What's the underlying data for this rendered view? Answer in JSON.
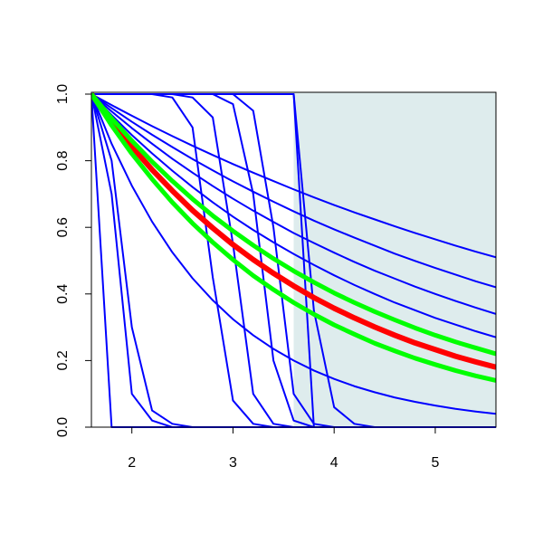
{
  "chart_data": {
    "type": "line",
    "x": [
      1.6,
      1.8,
      2.0,
      2.2,
      2.4,
      2.6,
      2.8,
      3.0,
      3.2,
      3.4,
      3.6,
      3.8,
      4.0,
      4.2,
      4.4,
      4.6,
      4.8,
      5.0,
      5.2,
      5.4,
      5.6
    ],
    "xlim": [
      1.6,
      5.6
    ],
    "ylim": [
      0,
      1
    ],
    "xticks": [
      2,
      3,
      4,
      5
    ],
    "yticks": [
      {
        "value": 0,
        "label": "0.0"
      },
      0.2,
      0.4,
      0.6,
      0.8,
      {
        "value": 1,
        "label": "1.0"
      }
    ],
    "shaded_region": {
      "x": [
        3.6,
        5.6
      ],
      "color": "#deeced"
    },
    "series": [
      {
        "color": "#0000ff",
        "width": 2,
        "values": [
          1,
          0.967,
          0.935,
          0.904,
          0.874,
          0.845,
          0.817,
          0.79,
          0.764,
          0.739,
          0.714,
          0.69,
          0.667,
          0.645,
          0.624,
          0.603,
          0.583,
          0.564,
          0.545,
          0.527,
          0.51
        ]
      },
      {
        "color": "#0000ff",
        "width": 2,
        "values": [
          1,
          0.958,
          0.917,
          0.878,
          0.841,
          0.805,
          0.771,
          0.738,
          0.707,
          0.677,
          0.648,
          0.62,
          0.594,
          0.569,
          0.545,
          0.521,
          0.499,
          0.478,
          0.458,
          0.438,
          0.42
        ]
      },
      {
        "color": "#0000ff",
        "width": 2,
        "values": [
          1,
          0.948,
          0.898,
          0.851,
          0.806,
          0.764,
          0.724,
          0.686,
          0.65,
          0.616,
          0.583,
          0.553,
          0.524,
          0.496,
          0.47,
          0.446,
          0.422,
          0.4,
          0.379,
          0.359,
          0.34
        ]
      },
      {
        "color": "#0000ff",
        "width": 2,
        "values": [
          1,
          0.937,
          0.877,
          0.822,
          0.77,
          0.721,
          0.675,
          0.632,
          0.592,
          0.555,
          0.52,
          0.487,
          0.456,
          0.427,
          0.4,
          0.374,
          0.351,
          0.328,
          0.308,
          0.288,
          0.27
        ]
      },
      {
        "color": "#0000ff",
        "width": 2,
        "values": [
          1,
          0.851,
          0.725,
          0.617,
          0.525,
          0.447,
          0.381,
          0.324,
          0.276,
          0.235,
          0.2,
          0.17,
          0.145,
          0.123,
          0.105,
          0.089,
          0.076,
          0.065,
          0.055,
          0.047,
          0.04
        ]
      },
      {
        "color": "#0000ff",
        "width": 2,
        "values": [
          1,
          0,
          0,
          0,
          0,
          0,
          0,
          0,
          0,
          0,
          0,
          0,
          0,
          0,
          0,
          0,
          0,
          0,
          0,
          0,
          0
        ]
      },
      {
        "color": "#0000ff",
        "width": 2,
        "values": [
          1,
          0.7,
          0.1,
          0.02,
          0,
          0,
          0,
          0,
          0,
          0,
          0,
          0,
          0,
          0,
          0,
          0,
          0,
          0,
          0,
          0,
          0
        ]
      },
      {
        "color": "#0000ff",
        "width": 2,
        "values": [
          1,
          0.8,
          0.3,
          0.05,
          0.01,
          0,
          0,
          0,
          0,
          0,
          0,
          0,
          0,
          0,
          0,
          0,
          0,
          0,
          0,
          0,
          0
        ]
      },
      {
        "color": "#0000ff",
        "width": 2,
        "values": [
          1,
          1,
          1,
          1,
          0.99,
          0.9,
          0.45,
          0.08,
          0.01,
          0,
          0,
          0,
          0,
          0,
          0,
          0,
          0,
          0,
          0,
          0,
          0
        ]
      },
      {
        "color": "#0000ff",
        "width": 2,
        "values": [
          1,
          1,
          1,
          1,
          1,
          0.99,
          0.93,
          0.55,
          0.1,
          0.01,
          0,
          0,
          0,
          0,
          0,
          0,
          0,
          0,
          0,
          0,
          0
        ]
      },
      {
        "color": "#0000ff",
        "width": 2,
        "values": [
          1,
          1,
          1,
          1,
          1,
          1,
          1,
          0.97,
          0.7,
          0.2,
          0.02,
          0,
          0,
          0,
          0,
          0,
          0,
          0,
          0,
          0,
          0
        ]
      },
      {
        "color": "#0000ff",
        "width": 2,
        "values": [
          1,
          1,
          1,
          1,
          1,
          1,
          1,
          1,
          0.95,
          0.6,
          0.1,
          0.01,
          0,
          0,
          0,
          0,
          0,
          0,
          0,
          0,
          0
        ]
      },
      {
        "color": "#0000ff",
        "width": 2,
        "values": [
          1,
          1,
          1,
          1,
          1,
          1,
          1,
          1,
          1,
          1,
          1,
          0,
          0,
          0,
          0,
          0,
          0,
          0,
          0,
          0,
          0
        ]
      },
      {
        "color": "#0000ff",
        "width": 2,
        "values": [
          1,
          1,
          1,
          1,
          1,
          1,
          1,
          1,
          1,
          1,
          1,
          0.35,
          0.06,
          0.01,
          0,
          0,
          0,
          0,
          0,
          0,
          0
        ]
      },
      {
        "color": "#ff0000",
        "width": 6,
        "values": [
          1,
          0.918,
          0.842,
          0.773,
          0.71,
          0.651,
          0.598,
          0.548,
          0.503,
          0.462,
          0.424,
          0.389,
          0.357,
          0.328,
          0.301,
          0.276,
          0.253,
          0.233,
          0.213,
          0.196,
          0.18
        ]
      },
      {
        "color": "#00ff00",
        "width": 5,
        "values": [
          1,
          0.927,
          0.86,
          0.797,
          0.739,
          0.685,
          0.635,
          0.589,
          0.546,
          0.506,
          0.469,
          0.435,
          0.403,
          0.374,
          0.347,
          0.322,
          0.298,
          0.276,
          0.256,
          0.238,
          0.22
        ]
      },
      {
        "color": "#00ff00",
        "width": 5,
        "values": [
          1,
          0.906,
          0.821,
          0.745,
          0.675,
          0.612,
          0.555,
          0.503,
          0.455,
          0.413,
          0.374,
          0.339,
          0.307,
          0.279,
          0.252,
          0.229,
          0.207,
          0.188,
          0.17,
          0.154,
          0.14
        ]
      }
    ]
  }
}
